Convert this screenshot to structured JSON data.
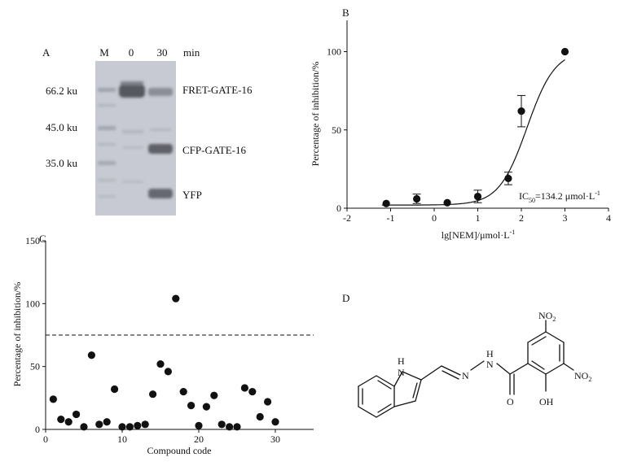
{
  "panels": {
    "A": {
      "label": "A",
      "lane_headers": [
        "M",
        "0",
        "30"
      ],
      "unit": "min",
      "markers": [
        "66.2 ku",
        "45.0 ku",
        "35.0 ku"
      ],
      "bands": [
        "FRET-GATE-16",
        "CFP-GATE-16",
        "YFP"
      ]
    },
    "B": {
      "label": "B"
    },
    "C": {
      "label": "C"
    },
    "D": {
      "label": "D"
    }
  },
  "chart_data": [
    {
      "id": "B",
      "type": "scatter",
      "xlabel": "lg[NEM]/μmol·L",
      "xlabel_sup": "-1",
      "ylabel": "Percentage of inhibition/%",
      "xlim": [
        -2,
        4
      ],
      "ylim": [
        0,
        120
      ],
      "xticks": [
        -2,
        -1,
        0,
        1,
        2,
        3,
        4
      ],
      "yticks": [
        0,
        50,
        100
      ],
      "points": [
        {
          "x": -1.1,
          "y": 3,
          "err": 0
        },
        {
          "x": -0.4,
          "y": 6,
          "err": 3
        },
        {
          "x": 0.3,
          "y": 3.5,
          "err": 0
        },
        {
          "x": 1.0,
          "y": 7.5,
          "err": 4
        },
        {
          "x": 1.7,
          "y": 19,
          "err": 4
        },
        {
          "x": 2.0,
          "y": 62,
          "err": 10
        },
        {
          "x": 3.0,
          "y": 100,
          "err": 0
        }
      ],
      "fit": {
        "model": "sigmoid",
        "top": 101,
        "bottom": 2,
        "lg_ic50": 2.13,
        "hill": 1.35
      },
      "annotation": {
        "main": "IC",
        "sub": "50",
        "rest": "=134.2 μmol·L",
        "sup": "-1"
      }
    },
    {
      "id": "C",
      "type": "scatter",
      "xlabel": "Compound code",
      "ylabel": "Percentage of inhibition/%",
      "xlim": [
        0,
        35
      ],
      "ylim": [
        0,
        150
      ],
      "xticks": [
        0,
        10,
        20,
        30
      ],
      "yticks": [
        0,
        50,
        100,
        150
      ],
      "threshold": 75,
      "points": [
        {
          "x": 1,
          "y": 24
        },
        {
          "x": 2,
          "y": 8
        },
        {
          "x": 3,
          "y": 6
        },
        {
          "x": 4,
          "y": 12
        },
        {
          "x": 5,
          "y": 2
        },
        {
          "x": 6,
          "y": 59
        },
        {
          "x": 7,
          "y": 4
        },
        {
          "x": 8,
          "y": 6
        },
        {
          "x": 9,
          "y": 32
        },
        {
          "x": 10,
          "y": 2
        },
        {
          "x": 11,
          "y": 2
        },
        {
          "x": 12,
          "y": 3
        },
        {
          "x": 13,
          "y": 4
        },
        {
          "x": 14,
          "y": 28
        },
        {
          "x": 15,
          "y": 52
        },
        {
          "x": 16,
          "y": 46
        },
        {
          "x": 17,
          "y": 104
        },
        {
          "x": 18,
          "y": 30
        },
        {
          "x": 19,
          "y": 19
        },
        {
          "x": 20,
          "y": 3
        },
        {
          "x": 21,
          "y": 18
        },
        {
          "x": 22,
          "y": 27
        },
        {
          "x": 23,
          "y": 4
        },
        {
          "x": 24,
          "y": 2
        },
        {
          "x": 25,
          "y": 2
        },
        {
          "x": 26,
          "y": 33
        },
        {
          "x": 27,
          "y": 30
        },
        {
          "x": 28,
          "y": 10
        },
        {
          "x": 29,
          "y": 22
        },
        {
          "x": 30,
          "y": 6
        }
      ]
    }
  ],
  "structure": {
    "nh_label": "H",
    "n1": "N",
    "n2": "N",
    "n3": "N",
    "nh2_h": "H",
    "o_label": "O",
    "oh_label": "OH",
    "no2": "NO",
    "no2_sub": "2"
  }
}
